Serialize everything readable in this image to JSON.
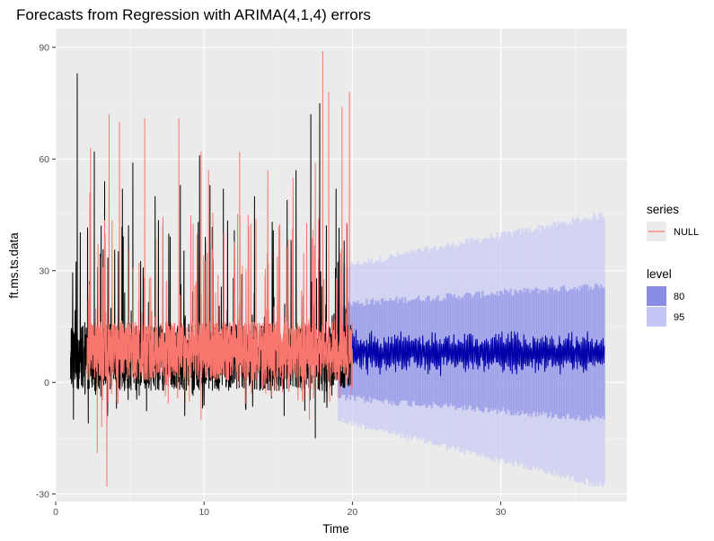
{
  "chart_data": {
    "type": "line",
    "title": "Forecasts from Regression with ARIMA(4,1,4) errors",
    "xlabel": "Time",
    "ylabel": "ft.ms.ts.data",
    "xlim": [
      0,
      38.5
    ],
    "ylim": [
      -32,
      95
    ],
    "x_ticks": [
      0,
      10,
      20,
      30
    ],
    "y_ticks": [
      -30,
      0,
      30,
      60,
      90
    ],
    "x_tick_labels": [
      "0",
      "10",
      "20",
      "30"
    ],
    "y_tick_labels": [
      "-30",
      "0",
      "30",
      "60",
      "90"
    ],
    "grid": true,
    "legend_position": "right",
    "legend": {
      "series_title": "series",
      "series_label": "NULL",
      "level_title": "level",
      "levels": [
        {
          "label": "80",
          "color": "#8a8ce6"
        },
        {
          "label": "95",
          "color": "#c4c6f6"
        }
      ]
    },
    "colors": {
      "panel": "#ebebeb",
      "grid_major": "#ffffff",
      "observed": "#000000",
      "fitted": "#f8766d",
      "forecast_mean": "#0000aa",
      "pi80": "#8a8ce6",
      "pi95": "#c4c6f6"
    },
    "series": [
      {
        "role": "observed",
        "x_start": 1.0,
        "x_end": 20.0,
        "level_approx": 4,
        "min_value": -15,
        "max_value": 83,
        "peaks": [
          [
            1.45,
            83
          ],
          [
            2.6,
            62
          ],
          [
            3.3,
            54
          ],
          [
            4.5,
            52
          ],
          [
            5.2,
            59
          ],
          [
            6.7,
            50
          ],
          [
            8.4,
            53
          ],
          [
            9.7,
            61
          ],
          [
            10.4,
            53
          ],
          [
            11.3,
            52
          ],
          [
            13.4,
            50
          ],
          [
            15.6,
            49
          ],
          [
            16.2,
            57
          ],
          [
            17.2,
            72
          ],
          [
            17.8,
            75
          ],
          [
            18.9,
            52
          ]
        ],
        "troughs": [
          [
            1.2,
            -10
          ],
          [
            2.2,
            -11
          ],
          [
            3.5,
            -9
          ],
          [
            8.7,
            -9
          ],
          [
            12.8,
            -7
          ],
          [
            15.4,
            -9
          ],
          [
            17.5,
            -15
          ]
        ]
      },
      {
        "role": "fitted",
        "name": "NULL",
        "x_start": 2.1,
        "x_end": 20.0,
        "level_approx": 6,
        "min_value": -28,
        "max_value": 89,
        "peaks": [
          [
            2.3,
            51
          ],
          [
            2.35,
            63
          ],
          [
            3.6,
            72
          ],
          [
            4.3,
            70
          ],
          [
            6.0,
            71
          ],
          [
            8.3,
            71
          ],
          [
            9.8,
            62
          ],
          [
            10.3,
            57
          ],
          [
            12.4,
            62
          ],
          [
            14.3,
            57
          ],
          [
            16.0,
            55
          ],
          [
            17.5,
            59
          ],
          [
            18.0,
            89
          ],
          [
            18.4,
            78
          ],
          [
            19.3,
            74
          ],
          [
            19.8,
            78
          ]
        ],
        "troughs": [
          [
            2.8,
            -19
          ],
          [
            3.45,
            -28
          ],
          [
            3.1,
            -12
          ],
          [
            9.8,
            -10
          ],
          [
            17.1,
            -10
          ]
        ]
      },
      {
        "role": "forecast_mean",
        "x_start": 20.0,
        "x_end": 37.0,
        "center": 8,
        "amplitude": 4.5,
        "min_value": 1,
        "max_value": 16
      },
      {
        "role": "interval_80",
        "x_start": 19.0,
        "x_end": 37.0,
        "lower_start": -3,
        "lower_end": -9,
        "upper_start": 20,
        "upper_end": 25
      },
      {
        "role": "interval_95",
        "x_start": 19.0,
        "x_end": 37.0,
        "lower_start": -9,
        "lower_end": -27,
        "upper_start": 30,
        "upper_end": 44
      }
    ]
  }
}
